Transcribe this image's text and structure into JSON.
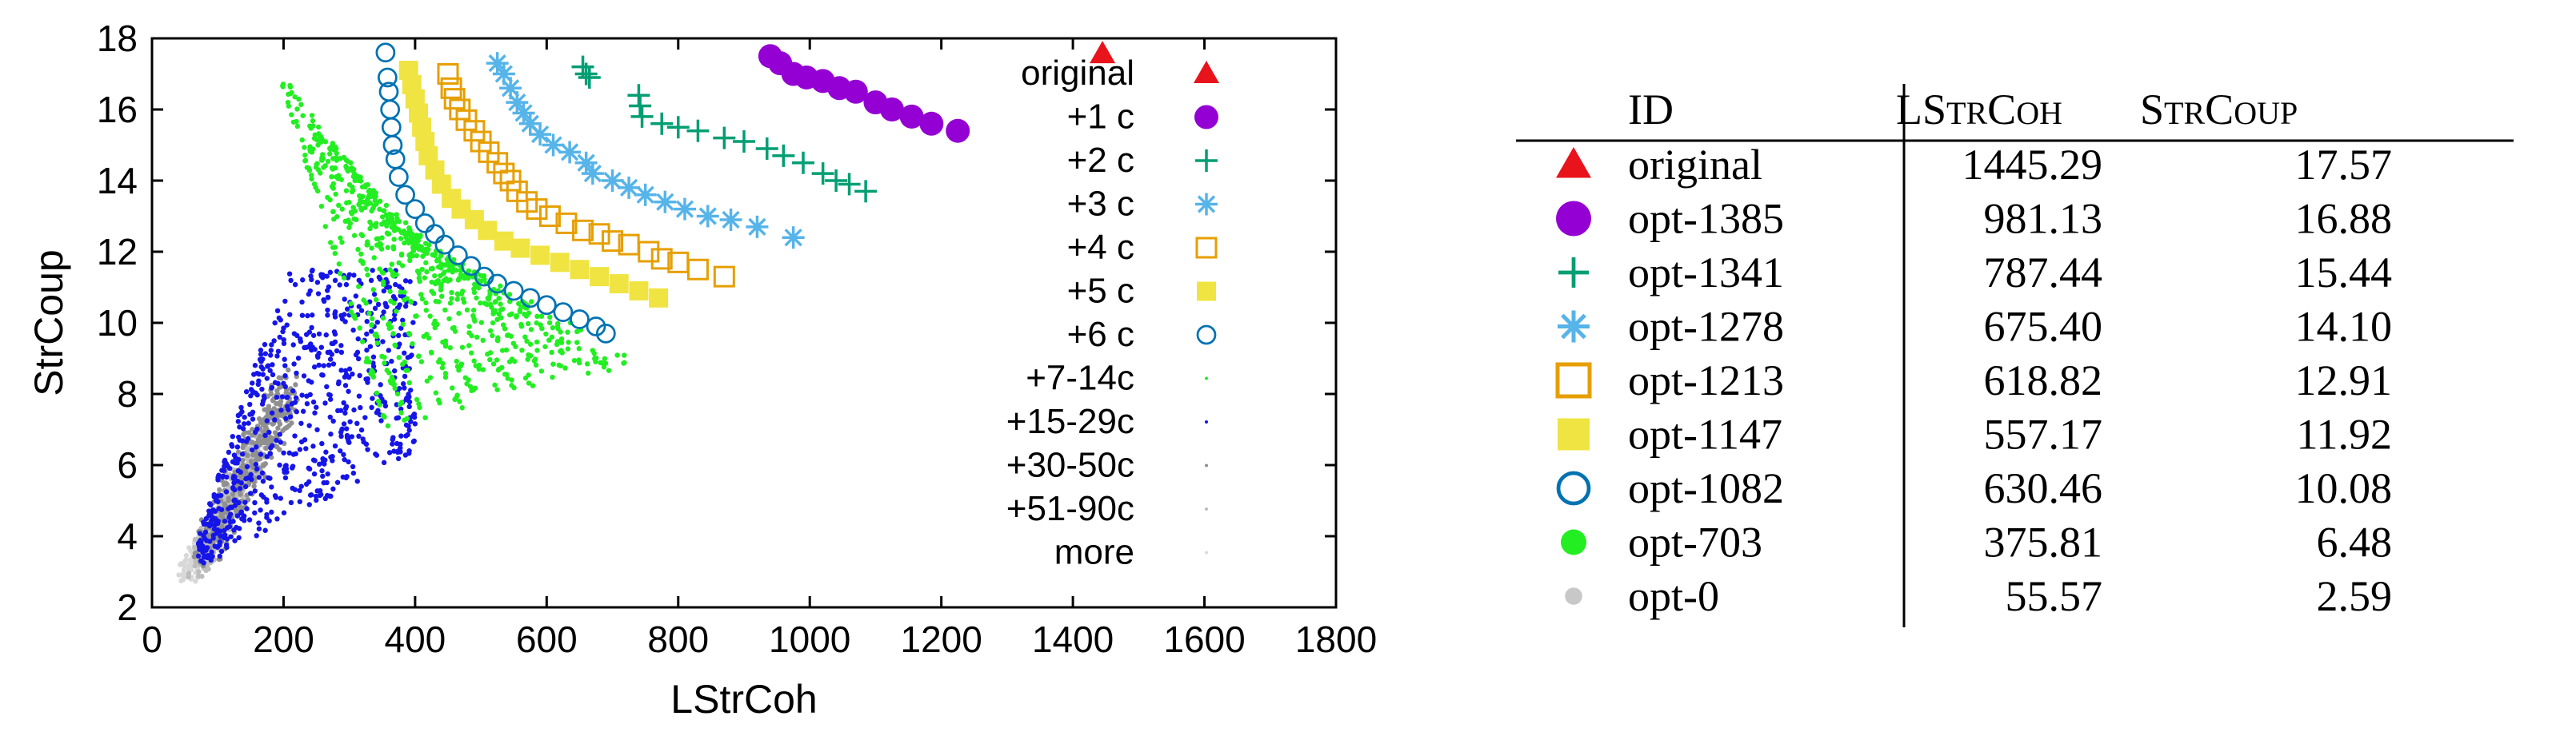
{
  "chart_data": {
    "type": "scatter",
    "xlabel": "LStrCoh",
    "ylabel": "StrCoup",
    "xlim": [
      0,
      1800
    ],
    "ylim": [
      2,
      18
    ],
    "x_ticks": [
      "0",
      "200",
      "400",
      "600",
      "800",
      "1000",
      "1200",
      "1400",
      "1600",
      "1800"
    ],
    "y_ticks": [
      "2",
      "4",
      "6",
      "8",
      "10",
      "12",
      "14",
      "16",
      "18"
    ],
    "grid": false,
    "legend_position": "right (inside)",
    "series": [
      {
        "name": "original",
        "marker": "triangle",
        "color": "#e8131b",
        "points": [
          [
            1445,
            17.57
          ]
        ]
      },
      {
        "name": "+1 c",
        "marker": "filled-circle",
        "color": "#9400d3",
        "points": [
          [
            940,
            17.5
          ],
          [
            955,
            17.3
          ],
          [
            975,
            17.0
          ],
          [
            995,
            16.9
          ],
          [
            1020,
            16.8
          ],
          [
            1045,
            16.6
          ],
          [
            1070,
            16.5
          ],
          [
            1100,
            16.2
          ],
          [
            1125,
            16.0
          ],
          [
            1155,
            15.8
          ],
          [
            1185,
            15.6
          ],
          [
            1225,
            15.4
          ]
        ]
      },
      {
        "name": "+2 c",
        "marker": "plus",
        "color": "#009e73",
        "points": [
          [
            655,
            17.2
          ],
          [
            660,
            17.0
          ],
          [
            665,
            16.9
          ],
          [
            740,
            16.4
          ],
          [
            742,
            16.1
          ],
          [
            745,
            15.8
          ],
          [
            775,
            15.6
          ],
          [
            800,
            15.5
          ],
          [
            830,
            15.4
          ],
          [
            870,
            15.2
          ],
          [
            900,
            15.1
          ],
          [
            935,
            14.9
          ],
          [
            960,
            14.7
          ],
          [
            990,
            14.5
          ],
          [
            1020,
            14.2
          ],
          [
            1040,
            14.0
          ],
          [
            1060,
            13.9
          ],
          [
            1085,
            13.7
          ]
        ]
      },
      {
        "name": "+3 c",
        "marker": "asterisk",
        "color": "#56b4e9",
        "points": [
          [
            525,
            17.3
          ],
          [
            535,
            17.0
          ],
          [
            545,
            16.6
          ],
          [
            555,
            16.2
          ],
          [
            565,
            15.9
          ],
          [
            575,
            15.6
          ],
          [
            590,
            15.3
          ],
          [
            610,
            15.0
          ],
          [
            635,
            14.8
          ],
          [
            660,
            14.5
          ],
          [
            670,
            14.2
          ],
          [
            700,
            14.0
          ],
          [
            725,
            13.8
          ],
          [
            750,
            13.6
          ],
          [
            780,
            13.4
          ],
          [
            810,
            13.2
          ],
          [
            845,
            13.0
          ],
          [
            880,
            12.9
          ],
          [
            920,
            12.7
          ],
          [
            975,
            12.4
          ]
        ]
      },
      {
        "name": "+4 c",
        "marker": "open-square",
        "color": "#e69f00",
        "points": [
          [
            450,
            17.0
          ],
          [
            455,
            16.6
          ],
          [
            460,
            16.3
          ],
          [
            468,
            16.0
          ],
          [
            478,
            15.7
          ],
          [
            490,
            15.4
          ],
          [
            500,
            15.1
          ],
          [
            512,
            14.8
          ],
          [
            525,
            14.5
          ],
          [
            535,
            14.2
          ],
          [
            545,
            14.0
          ],
          [
            555,
            13.7
          ],
          [
            570,
            13.4
          ],
          [
            585,
            13.2
          ],
          [
            605,
            13.0
          ],
          [
            630,
            12.8
          ],
          [
            655,
            12.6
          ],
          [
            680,
            12.5
          ],
          [
            700,
            12.3
          ],
          [
            725,
            12.2
          ],
          [
            755,
            12.0
          ],
          [
            775,
            11.8
          ],
          [
            800,
            11.7
          ],
          [
            830,
            11.5
          ],
          [
            870,
            11.3
          ]
        ]
      },
      {
        "name": "+5 c",
        "marker": "filled-square",
        "color": "#f0e442",
        "points": [
          [
            390,
            17.1
          ],
          [
            395,
            16.7
          ],
          [
            400,
            16.3
          ],
          [
            405,
            15.9
          ],
          [
            410,
            15.5
          ],
          [
            415,
            15.1
          ],
          [
            420,
            14.7
          ],
          [
            430,
            14.3
          ],
          [
            440,
            13.9
          ],
          [
            455,
            13.5
          ],
          [
            470,
            13.2
          ],
          [
            490,
            12.9
          ],
          [
            510,
            12.6
          ],
          [
            535,
            12.3
          ],
          [
            560,
            12.1
          ],
          [
            590,
            11.9
          ],
          [
            620,
            11.7
          ],
          [
            650,
            11.5
          ],
          [
            680,
            11.3
          ],
          [
            710,
            11.1
          ],
          [
            740,
            10.9
          ],
          [
            770,
            10.7
          ]
        ]
      },
      {
        "name": "+6 c",
        "marker": "open-circle",
        "color": "#0072b2",
        "points": [
          [
            355,
            17.6
          ],
          [
            358,
            16.9
          ],
          [
            360,
            16.5
          ],
          [
            362,
            16.0
          ],
          [
            364,
            15.5
          ],
          [
            366,
            15.0
          ],
          [
            370,
            14.6
          ],
          [
            375,
            14.1
          ],
          [
            385,
            13.6
          ],
          [
            400,
            13.2
          ],
          [
            415,
            12.8
          ],
          [
            430,
            12.5
          ],
          [
            445,
            12.2
          ],
          [
            465,
            11.9
          ],
          [
            485,
            11.6
          ],
          [
            505,
            11.3
          ],
          [
            525,
            11.1
          ],
          [
            550,
            10.9
          ],
          [
            575,
            10.7
          ],
          [
            600,
            10.5
          ],
          [
            625,
            10.3
          ],
          [
            650,
            10.1
          ],
          [
            675,
            9.9
          ],
          [
            690,
            9.7
          ]
        ]
      },
      {
        "name": "+7-14c",
        "marker": "dot",
        "color": "#22ee22",
        "points": []
      },
      {
        "name": "+15-29c",
        "marker": "dot",
        "color": "#1515e8",
        "points": []
      },
      {
        "name": "+30-50c",
        "marker": "dot",
        "color": "#909090",
        "points": []
      },
      {
        "name": "+51-90c",
        "marker": "dot",
        "color": "#bdbdbd",
        "points": []
      },
      {
        "name": "more",
        "marker": "dot",
        "color": "#d8d8d8",
        "points": []
      }
    ]
  },
  "table": {
    "headers": [
      "ID",
      "LStrCoh",
      "StrCoup"
    ],
    "rows": [
      {
        "marker": "triangle",
        "color": "#e8131b",
        "id": "original",
        "lstrcoh": "1445.29",
        "strcoup": "17.57"
      },
      {
        "marker": "filled-circle",
        "color": "#9400d3",
        "id": "opt-1385",
        "lstrcoh": "981.13",
        "strcoup": "16.88"
      },
      {
        "marker": "plus",
        "color": "#009e73",
        "id": "opt-1341",
        "lstrcoh": "787.44",
        "strcoup": "15.44"
      },
      {
        "marker": "asterisk",
        "color": "#56b4e9",
        "id": "opt-1278",
        "lstrcoh": "675.40",
        "strcoup": "14.10"
      },
      {
        "marker": "open-square",
        "color": "#e69f00",
        "id": "opt-1213",
        "lstrcoh": "618.82",
        "strcoup": "12.91"
      },
      {
        "marker": "filled-square",
        "color": "#f0e442",
        "id": "opt-1147",
        "lstrcoh": "557.17",
        "strcoup": "11.92"
      },
      {
        "marker": "open-circle",
        "color": "#0072b2",
        "id": "opt-1082",
        "lstrcoh": "630.46",
        "strcoup": "10.08"
      },
      {
        "marker": "filled-circle",
        "color": "#22ee22",
        "id": "opt-703",
        "lstrcoh": "375.81",
        "strcoup": "6.48"
      },
      {
        "marker": "dot",
        "color": "#c8c8c8",
        "id": "opt-0",
        "lstrcoh": "55.57",
        "strcoup": "2.59"
      }
    ]
  }
}
